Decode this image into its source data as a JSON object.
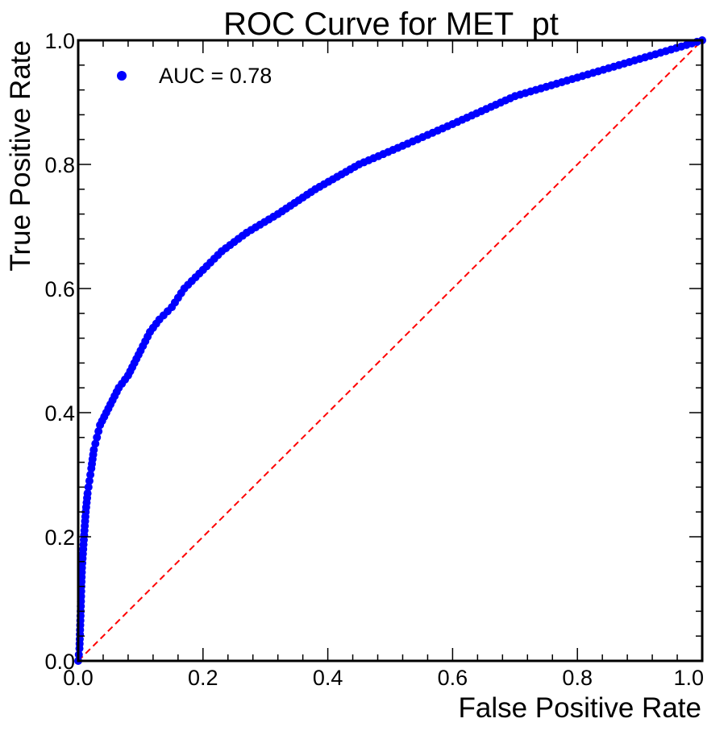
{
  "chart_data": {
    "type": "scatter",
    "title": "ROC Curve for MET_pt",
    "xlabel": "False Positive Rate",
    "ylabel": "True Positive Rate",
    "xlim": [
      0.0,
      1.0
    ],
    "ylim": [
      0.0,
      1.0
    ],
    "xticks": [
      "0.0",
      "0.2",
      "0.4",
      "0.6",
      "0.8",
      "1.0"
    ],
    "yticks": [
      "0.0",
      "0.2",
      "0.4",
      "0.6",
      "0.8",
      "1.0"
    ],
    "grid": false,
    "legend_position": "top-left",
    "series": [
      {
        "name": "AUC = 0.78",
        "style": "markers",
        "color": "#0000ff",
        "points": [
          [
            0.0,
            0.0
          ],
          [
            0.002,
            0.02
          ],
          [
            0.003,
            0.05
          ],
          [
            0.004,
            0.08
          ],
          [
            0.005,
            0.12
          ],
          [
            0.006,
            0.15
          ],
          [
            0.008,
            0.18
          ],
          [
            0.01,
            0.21
          ],
          [
            0.012,
            0.24
          ],
          [
            0.015,
            0.27
          ],
          [
            0.018,
            0.29
          ],
          [
            0.021,
            0.31
          ],
          [
            0.025,
            0.34
          ],
          [
            0.03,
            0.36
          ],
          [
            0.035,
            0.38
          ],
          [
            0.045,
            0.4
          ],
          [
            0.055,
            0.42
          ],
          [
            0.065,
            0.44
          ],
          [
            0.08,
            0.46
          ],
          [
            0.09,
            0.48
          ],
          [
            0.1,
            0.5
          ],
          [
            0.115,
            0.53
          ],
          [
            0.13,
            0.55
          ],
          [
            0.15,
            0.57
          ],
          [
            0.17,
            0.6
          ],
          [
            0.2,
            0.63
          ],
          [
            0.23,
            0.66
          ],
          [
            0.27,
            0.69
          ],
          [
            0.32,
            0.72
          ],
          [
            0.38,
            0.76
          ],
          [
            0.45,
            0.8
          ],
          [
            0.52,
            0.83
          ],
          [
            0.6,
            0.865
          ],
          [
            0.7,
            0.91
          ],
          [
            0.8,
            0.94
          ],
          [
            0.9,
            0.97
          ],
          [
            0.95,
            0.985
          ],
          [
            1.0,
            1.0
          ]
        ]
      },
      {
        "name": "",
        "style": "dashed-line",
        "color": "#ff0000",
        "points": [
          [
            0.0,
            0.0
          ],
          [
            1.0,
            1.0
          ]
        ]
      }
    ]
  }
}
